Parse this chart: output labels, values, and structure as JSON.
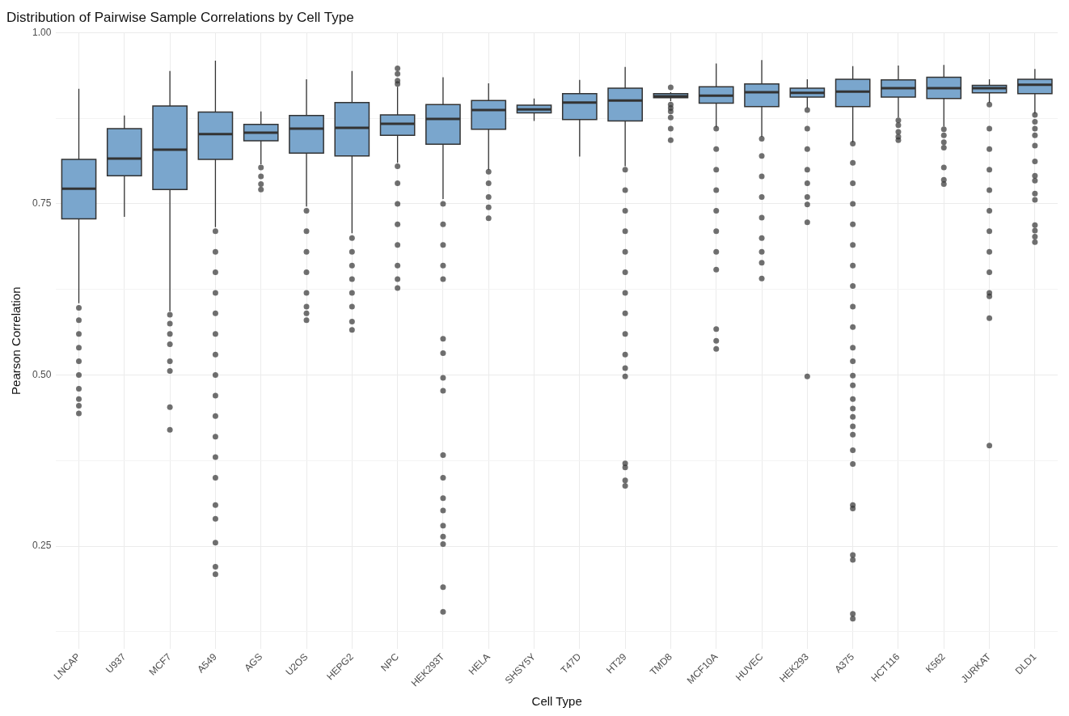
{
  "chart_data": {
    "type": "box",
    "title": "Distribution of Pairwise Sample Correlations by Cell Type",
    "xlabel": "Cell Type",
    "ylabel": "Pearson Correlation",
    "categories": [
      "LNCAP",
      "U937",
      "MCF7",
      "A549",
      "AGS",
      "U2OS",
      "HEPG2",
      "NPC",
      "HEK293T",
      "HELA",
      "SHSY5Y",
      "T47D",
      "HT29",
      "TMD8",
      "MCF10A",
      "HUVEC",
      "HEK293",
      "A375",
      "HCT116",
      "K562",
      "JURKAT",
      "DLD1"
    ],
    "ylim": [
      0.1,
      1.0
    ],
    "yticks": [
      {
        "value": 0.125,
        "label": null
      },
      {
        "value": 0.25,
        "label": "0.25"
      },
      {
        "value": 0.375,
        "label": null
      },
      {
        "value": 0.5,
        "label": "0.50"
      },
      {
        "value": 0.625,
        "label": null
      },
      {
        "value": 0.75,
        "label": "0.75"
      },
      {
        "value": 0.875,
        "label": null
      },
      {
        "value": 1.0,
        "label": "1.00"
      }
    ],
    "grid": true,
    "series": [
      {
        "color": "#7aa6cd",
        "boxes": [
          {
            "low": 0.605,
            "q1": 0.728,
            "median": 0.772,
            "q3": 0.815,
            "high": 0.918,
            "outliers": [
              0.598,
              0.58,
              0.56,
              0.54,
              0.52,
              0.5,
              0.48,
              0.465,
              0.455,
              0.444
            ]
          },
          {
            "low": 0.731,
            "q1": 0.791,
            "median": 0.816,
            "q3": 0.86,
            "high": 0.879
          },
          {
            "low": 0.593,
            "q1": 0.771,
            "median": 0.829,
            "q3": 0.893,
            "high": 0.944,
            "outliers": [
              0.588,
              0.575,
              0.56,
              0.545,
              0.52,
              0.506,
              0.453,
              0.42
            ]
          },
          {
            "low": 0.716,
            "q1": 0.815,
            "median": 0.852,
            "q3": 0.884,
            "high": 0.959,
            "outliers": [
              0.71,
              0.68,
              0.65,
              0.62,
              0.59,
              0.56,
              0.53,
              0.5,
              0.47,
              0.44,
              0.41,
              0.38,
              0.35,
              0.31,
              0.29,
              0.255,
              0.22,
              0.209
            ]
          },
          {
            "low": 0.808,
            "q1": 0.842,
            "median": 0.854,
            "q3": 0.866,
            "high": 0.885,
            "outliers": [
              0.803,
              0.79,
              0.779,
              0.771
            ]
          },
          {
            "low": 0.746,
            "q1": 0.824,
            "median": 0.86,
            "q3": 0.879,
            "high": 0.932,
            "outliers": [
              0.74,
              0.71,
              0.68,
              0.65,
              0.62,
              0.6,
              0.59,
              0.58
            ]
          },
          {
            "low": 0.707,
            "q1": 0.82,
            "median": 0.861,
            "q3": 0.898,
            "high": 0.944,
            "outliers": [
              0.7,
              0.68,
              0.66,
              0.64,
              0.62,
              0.6,
              0.578,
              0.566
            ]
          },
          {
            "low": 0.81,
            "q1": 0.85,
            "median": 0.867,
            "q3": 0.88,
            "high": 0.921,
            "outliers": [
              0.948,
              0.94,
              0.93,
              0.925,
              0.805,
              0.78,
              0.75,
              0.72,
              0.69,
              0.66,
              0.64,
              0.627
            ]
          },
          {
            "low": 0.757,
            "q1": 0.837,
            "median": 0.874,
            "q3": 0.895,
            "high": 0.935,
            "outliers": [
              0.75,
              0.72,
              0.69,
              0.66,
              0.64,
              0.553,
              0.532,
              0.496,
              0.477,
              0.383,
              0.35,
              0.32,
              0.302,
              0.28,
              0.264,
              0.253,
              0.19,
              0.154
            ]
          },
          {
            "low": 0.8,
            "q1": 0.859,
            "median": 0.887,
            "q3": 0.901,
            "high": 0.926,
            "outliers": [
              0.797,
              0.78,
              0.76,
              0.745,
              0.729
            ]
          },
          {
            "low": 0.871,
            "q1": 0.883,
            "median": 0.888,
            "q3": 0.894,
            "high": 0.904
          },
          {
            "low": 0.819,
            "q1": 0.873,
            "median": 0.898,
            "q3": 0.911,
            "high": 0.931
          },
          {
            "low": 0.805,
            "q1": 0.871,
            "median": 0.901,
            "q3": 0.919,
            "high": 0.95,
            "outliers": [
              0.8,
              0.77,
              0.74,
              0.71,
              0.68,
              0.65,
              0.62,
              0.59,
              0.56,
              0.53,
              0.51,
              0.498,
              0.371,
              0.365,
              0.346,
              0.338
            ]
          },
          {
            "low": 0.9,
            "q1": 0.905,
            "median": 0.907,
            "q3": 0.911,
            "high": 0.913,
            "outliers": [
              0.92,
              0.895,
              0.89,
              0.885,
              0.876,
              0.86,
              0.843
            ]
          },
          {
            "low": 0.862,
            "q1": 0.897,
            "median": 0.908,
            "q3": 0.921,
            "high": 0.955,
            "outliers": [
              0.86,
              0.83,
              0.8,
              0.77,
              0.74,
              0.71,
              0.68,
              0.654,
              0.567,
              0.55,
              0.538
            ]
          },
          {
            "low": 0.848,
            "q1": 0.892,
            "median": 0.913,
            "q3": 0.925,
            "high": 0.96,
            "outliers": [
              0.845,
              0.82,
              0.79,
              0.76,
              0.73,
              0.7,
              0.68,
              0.664,
              0.641
            ]
          },
          {
            "low": 0.89,
            "q1": 0.906,
            "median": 0.912,
            "q3": 0.919,
            "high": 0.932,
            "outliers": [
              0.887,
              0.86,
              0.83,
              0.8,
              0.78,
              0.76,
              0.749,
              0.723,
              0.498
            ]
          },
          {
            "low": 0.84,
            "q1": 0.892,
            "median": 0.914,
            "q3": 0.932,
            "high": 0.951,
            "outliers": [
              0.838,
              0.81,
              0.78,
              0.75,
              0.72,
              0.69,
              0.66,
              0.63,
              0.6,
              0.57,
              0.54,
              0.52,
              0.499,
              0.485,
              0.465,
              0.451,
              0.439,
              0.425,
              0.413,
              0.39,
              0.37,
              0.31,
              0.305,
              0.237,
              0.23,
              0.151,
              0.144
            ]
          },
          {
            "low": 0.876,
            "q1": 0.906,
            "median": 0.919,
            "q3": 0.931,
            "high": 0.952,
            "outliers": [
              0.872,
              0.865,
              0.855,
              0.848,
              0.843
            ]
          },
          {
            "low": 0.863,
            "q1": 0.904,
            "median": 0.919,
            "q3": 0.935,
            "high": 0.953,
            "outliers": [
              0.859,
              0.85,
              0.84,
              0.832,
              0.803,
              0.785,
              0.779
            ]
          },
          {
            "low": 0.898,
            "q1": 0.912,
            "median": 0.919,
            "q3": 0.923,
            "high": 0.932,
            "outliers": [
              0.895,
              0.86,
              0.83,
              0.8,
              0.77,
              0.74,
              0.71,
              0.68,
              0.65,
              0.62,
              0.615,
              0.583,
              0.397
            ]
          },
          {
            "low": 0.882,
            "q1": 0.911,
            "median": 0.924,
            "q3": 0.932,
            "high": 0.947,
            "outliers": [
              0.88,
              0.87,
              0.86,
              0.85,
              0.835,
              0.812,
              0.791,
              0.784,
              0.765,
              0.756,
              0.719,
              0.711,
              0.702,
              0.694
            ]
          }
        ]
      }
    ]
  }
}
